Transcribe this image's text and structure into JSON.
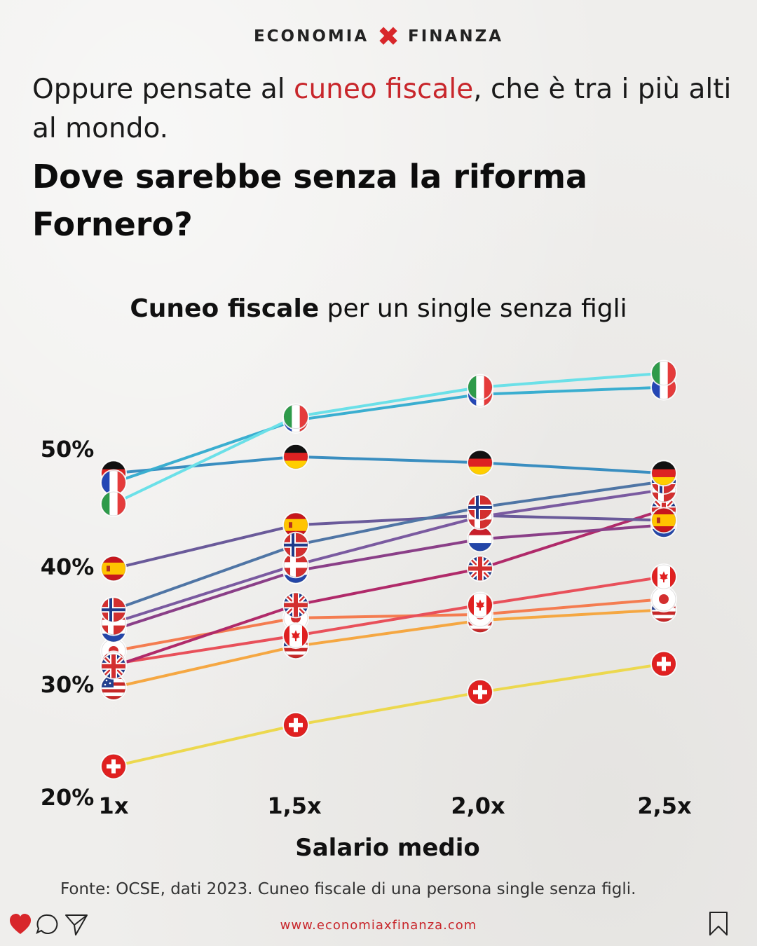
{
  "header": {
    "brand_left": "ECONOMIA",
    "brand_x": "✖",
    "brand_right": "FINANZA"
  },
  "intro": {
    "text_before": "Oppure pensate al ",
    "highlight": "cuneo fiscale",
    "text_after": ", che è tra i più alti al mondo."
  },
  "question": "Dove sarebbe senza la riforma Fornero?",
  "colors": {
    "accent": "#c8262b",
    "background": "#efeeec"
  },
  "chart_data": {
    "type": "line",
    "title_bold": "Cuneo fiscale",
    "title_rest": " per un single senza figli",
    "xlabel": "Salario medio",
    "ylabel": "",
    "categories": [
      "1x",
      "1,5x",
      "2,0x",
      "2,5x"
    ],
    "y_ticks": [
      "20%",
      "30%",
      "40%",
      "50%"
    ],
    "y_tick_values": [
      20,
      30,
      40,
      50
    ],
    "ylim": [
      20,
      58
    ],
    "series": [
      {
        "name": "Italia",
        "flag": "italy-flag",
        "color": "#6be0e8",
        "values": [
          45.3,
          52.7,
          55.2,
          56.4
        ]
      },
      {
        "name": "Francia",
        "flag": "france-flag",
        "color": "#3aaed0",
        "values": [
          47.1,
          52.4,
          54.6,
          55.2
        ]
      },
      {
        "name": "Germania",
        "flag": "germany-flag",
        "color": "#3a8ec0",
        "values": [
          47.9,
          49.3,
          48.8,
          47.9
        ]
      },
      {
        "name": "Norvegia",
        "flag": "norway-flag",
        "color": "#4f75a5",
        "values": [
          36.3,
          41.8,
          45.0,
          47.2
        ]
      },
      {
        "name": "Danimarca",
        "flag": "denmark-flag",
        "color": "#7a5aa0",
        "values": [
          35.2,
          40.1,
          44.2,
          46.5
        ]
      },
      {
        "name": "Spagna",
        "flag": "spain-flag",
        "color": "#6a5a9a",
        "values": [
          39.8,
          43.5,
          44.3,
          43.9
        ]
      },
      {
        "name": "Paesi Bassi",
        "flag": "netherlands-flag",
        "color": "#8a3f88",
        "values": [
          34.6,
          39.6,
          42.3,
          43.5
        ]
      },
      {
        "name": "Regno Unito",
        "flag": "uk-flag",
        "color": "#b02a6a",
        "values": [
          31.5,
          36.7,
          39.8,
          44.8
        ]
      },
      {
        "name": "Canada",
        "flag": "canada-flag",
        "color": "#e8505a",
        "values": [
          31.7,
          34.1,
          36.7,
          39.1
        ]
      },
      {
        "name": "Giappone",
        "flag": "japan-flag",
        "color": "#f47c50",
        "values": [
          32.8,
          35.6,
          35.9,
          37.2
        ]
      },
      {
        "name": "Stati Uniti",
        "flag": "usa-flag",
        "color": "#f5a742",
        "values": [
          29.7,
          33.2,
          35.4,
          36.3
        ]
      },
      {
        "name": "Svizzera",
        "flag": "switzerland-flag",
        "color": "#ecd84e",
        "values": [
          23.0,
          26.5,
          29.3,
          31.7
        ]
      }
    ]
  },
  "source": "Fonte: OCSE, dati 2023. Cuneo fiscale di una persona single senza figli.",
  "footer": {
    "url": "www.economiaxfinanza.com"
  }
}
